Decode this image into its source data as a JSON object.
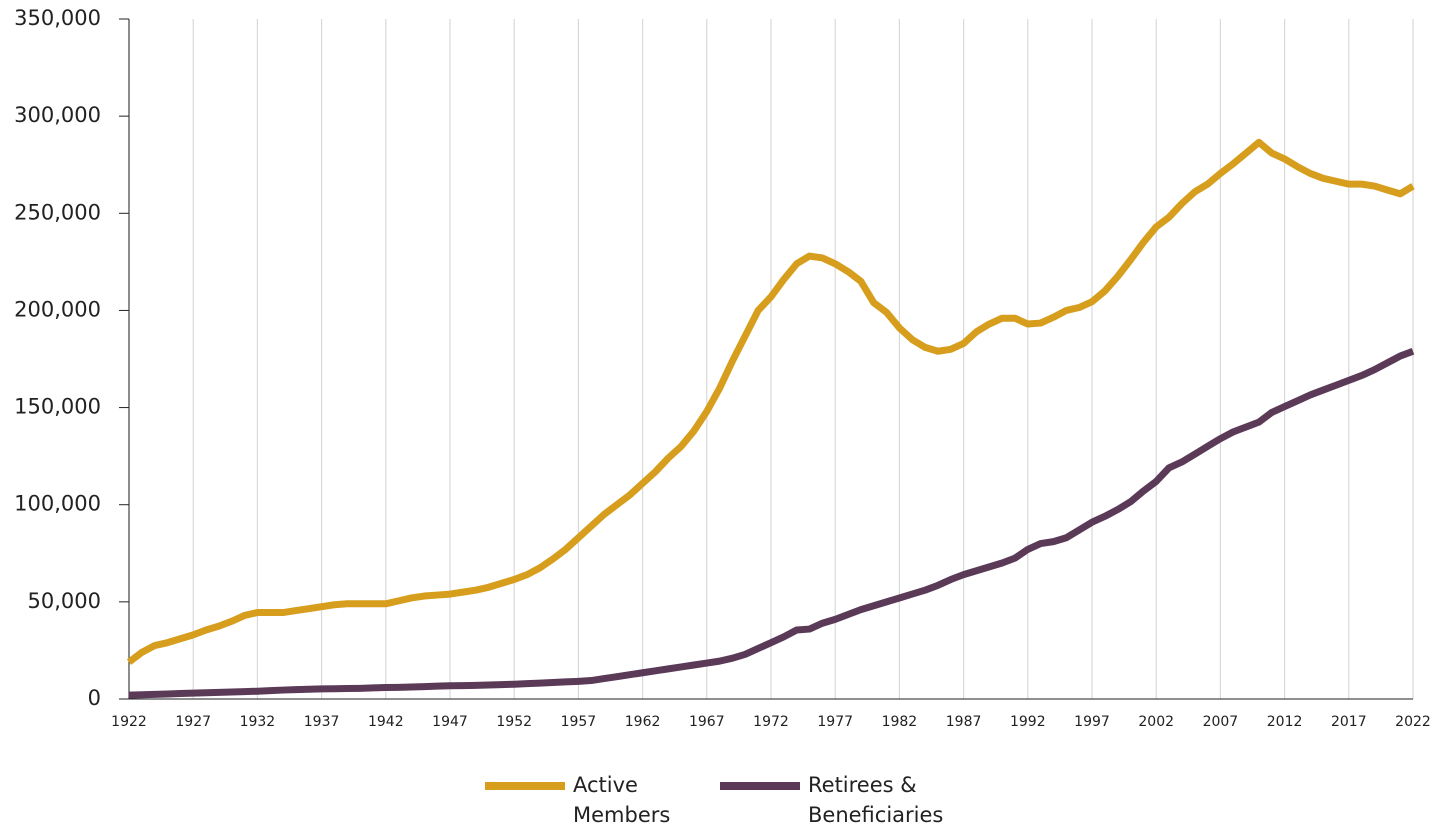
{
  "chart_data": {
    "type": "line",
    "x": [
      1922,
      1923,
      1924,
      1925,
      1926,
      1927,
      1928,
      1929,
      1930,
      1931,
      1932,
      1933,
      1934,
      1935,
      1936,
      1937,
      1938,
      1939,
      1940,
      1941,
      1942,
      1943,
      1944,
      1945,
      1946,
      1947,
      1948,
      1949,
      1950,
      1951,
      1952,
      1953,
      1954,
      1955,
      1956,
      1957,
      1958,
      1959,
      1960,
      1961,
      1962,
      1963,
      1964,
      1965,
      1966,
      1967,
      1968,
      1969,
      1970,
      1971,
      1972,
      1973,
      1974,
      1975,
      1976,
      1977,
      1978,
      1979,
      1980,
      1981,
      1982,
      1983,
      1984,
      1985,
      1986,
      1987,
      1988,
      1989,
      1990,
      1991,
      1992,
      1993,
      1994,
      1995,
      1996,
      1997,
      1998,
      1999,
      2000,
      2001,
      2002,
      2003,
      2004,
      2005,
      2006,
      2007,
      2008,
      2009,
      2010,
      2011,
      2012,
      2013,
      2014,
      2015,
      2016,
      2017,
      2018,
      2019,
      2020,
      2021,
      2022
    ],
    "series": [
      {
        "name": "Active Members",
        "color": "#d69e1c",
        "values": [
          19000,
          24000,
          27500,
          29000,
          31000,
          33000,
          35500,
          37500,
          40000,
          43000,
          44500,
          44500,
          44500,
          45500,
          46500,
          47500,
          48500,
          49000,
          49000,
          49000,
          49000,
          50500,
          52000,
          53000,
          53500,
          54000,
          55000,
          56000,
          57500,
          59500,
          61500,
          64000,
          67500,
          72000,
          77000,
          83000,
          89000,
          95000,
          100000,
          105000,
          111000,
          117000,
          124000,
          130000,
          138000,
          148000,
          160000,
          174000,
          187000,
          200000,
          207000,
          216000,
          224000,
          228000,
          227000,
          224000,
          220000,
          215000,
          204000,
          199000,
          191000,
          185000,
          181000,
          179000,
          180000,
          183000,
          189000,
          193000,
          196000,
          196000,
          193000,
          193500,
          196500,
          200000,
          201500,
          204500,
          210000,
          217500,
          226000,
          235000,
          243000,
          248000,
          255000,
          261000,
          265000,
          270500,
          275500,
          281000,
          286500,
          281000,
          278000,
          274000,
          270500,
          268000,
          266500,
          265000,
          265000,
          264000,
          262000,
          260000,
          264000
        ]
      },
      {
        "name": "Retirees & Beneficiaries",
        "color": "#5b3a58",
        "values": [
          2000,
          2200,
          2400,
          2600,
          2800,
          3000,
          3200,
          3400,
          3600,
          3800,
          4000,
          4300,
          4600,
          4800,
          5000,
          5200,
          5300,
          5400,
          5500,
          5700,
          5900,
          6000,
          6200,
          6400,
          6600,
          6800,
          6900,
          7000,
          7200,
          7400,
          7600,
          7900,
          8200,
          8500,
          8800,
          9100,
          9500,
          10500,
          11500,
          12500,
          13500,
          14500,
          15500,
          16500,
          17500,
          18500,
          19500,
          21000,
          23000,
          26000,
          29000,
          32000,
          35500,
          36000,
          39000,
          41000,
          43500,
          46000,
          48000,
          50000,
          52000,
          54000,
          56000,
          58500,
          61500,
          64000,
          66000,
          68000,
          70000,
          72500,
          77000,
          80000,
          81000,
          83000,
          87000,
          91000,
          94000,
          97500,
          101500,
          107000,
          112000,
          119000,
          122000,
          126000,
          130000,
          134000,
          137500,
          140000,
          142500,
          147500,
          150500,
          153500,
          156500,
          159000,
          161500,
          164000,
          166500,
          169500,
          173000,
          176500,
          179000
        ]
      }
    ],
    "xlim": [
      1922,
      2022
    ],
    "xticks": [
      1922,
      1927,
      1932,
      1937,
      1942,
      1947,
      1952,
      1957,
      1962,
      1967,
      1972,
      1977,
      1982,
      1987,
      1992,
      1997,
      2002,
      2007,
      2012,
      2017,
      2022
    ],
    "ylim": [
      0,
      350000
    ],
    "yticks": [
      0,
      {
        "value": 50000,
        "label": "50,000"
      },
      {
        "value": 100000,
        "label": "100,000"
      },
      {
        "value": 150000,
        "label": "150,000"
      },
      {
        "value": 200000,
        "label": "200,000"
      },
      {
        "value": 250000,
        "label": "250,000"
      },
      {
        "value": 300000,
        "label": "300,000"
      },
      {
        "value": 350000,
        "label": "350,000"
      }
    ],
    "grid": true,
    "legend": "bottom"
  }
}
